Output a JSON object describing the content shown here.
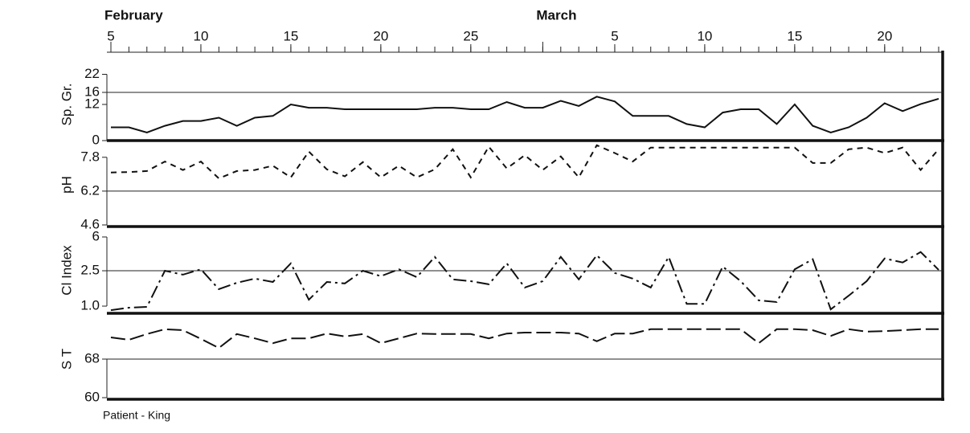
{
  "chart_data": {
    "type": "line",
    "months": [
      {
        "label": "February",
        "value": 5
      },
      {
        "label": "March",
        "value": 29
      }
    ],
    "x": [
      5,
      6,
      7,
      8,
      9,
      10,
      11,
      12,
      13,
      14,
      15,
      16,
      17,
      18,
      19,
      20,
      21,
      22,
      23,
      24,
      25,
      26,
      27,
      28,
      29,
      30,
      31,
      32,
      33,
      34,
      35,
      36,
      37,
      38,
      39,
      40,
      41,
      42,
      43,
      44,
      45,
      46,
      47,
      48,
      49,
      50,
      51
    ],
    "xlim": [
      5,
      51
    ],
    "xticks": [
      5,
      10,
      15,
      20,
      25,
      {
        "value": 33,
        "label": "5"
      },
      {
        "value": 38,
        "label": "10"
      },
      {
        "value": 43,
        "label": "15"
      },
      {
        "value": 48,
        "label": "20"
      }
    ],
    "color": "#111111",
    "panels": [
      {
        "ylabel": "Sp. Gr.",
        "ylim": [
          0,
          24
        ],
        "yticks": [
          0,
          12,
          16,
          22
        ],
        "log": false,
        "line_style": "solid",
        "reference_line": 16,
        "values": [
          4.4,
          4.4,
          2.7,
          4.9,
          6.5,
          6.5,
          7.6,
          4.9,
          7.6,
          8.2,
          12,
          10.9,
          10.9,
          10.4,
          10.4,
          10.4,
          10.4,
          10.4,
          10.9,
          10.9,
          10.4,
          10.4,
          12.8,
          10.9,
          10.9,
          13.2,
          11.5,
          14.6,
          13.0,
          8.2,
          8.2,
          8.2,
          5.5,
          4.4,
          9.3,
          10.4,
          10.4,
          5.5,
          12,
          4.9,
          2.7,
          4.4,
          7.6,
          12.4,
          9.8,
          12.1,
          13.9
        ]
      },
      {
        "ylabel": "pH",
        "ylim": [
          4.6,
          8.4
        ],
        "yticks": [
          7.8,
          6.2,
          4.6
        ],
        "log": false,
        "line_style": "dashed",
        "reference_line": 6.2,
        "values": [
          7.08,
          7.1,
          7.15,
          7.6,
          7.2,
          7.6,
          6.8,
          7.15,
          7.2,
          7.4,
          6.85,
          8.07,
          7.23,
          6.9,
          7.57,
          6.85,
          7.4,
          6.85,
          7.23,
          8.18,
          6.85,
          8.3,
          7.27,
          7.9,
          7.2,
          7.84,
          6.85,
          8.37,
          8.0,
          7.6,
          8.26,
          8.26,
          8.26,
          8.26,
          8.26,
          8.26,
          8.26,
          8.26,
          8.26,
          7.53,
          7.53,
          8.18,
          8.26,
          8.0,
          8.26,
          7.2,
          8.18
        ]
      },
      {
        "ylabel": "Cl Index",
        "ylim": [
          0.83,
          7.7
        ],
        "yticks": [
          6,
          2.5,
          {
            "value": 1,
            "label": "1.0"
          }
        ],
        "log": true,
        "line_style": "dashdot",
        "reference_line": 2.5,
        "values": [
          0.9,
          0.96,
          0.98,
          2.5,
          2.26,
          2.6,
          1.55,
          1.83,
          2.04,
          1.87,
          3.03,
          1.18,
          1.87,
          1.8,
          2.5,
          2.17,
          2.6,
          2.12,
          3.58,
          2.0,
          1.91,
          1.76,
          3.03,
          1.62,
          1.91,
          3.58,
          2.0,
          3.74,
          2.36,
          2.04,
          1.62,
          3.58,
          1.06,
          1.06,
          2.79,
          1.91,
          1.16,
          1.11,
          2.6,
          3.37,
          0.92,
          1.31,
          1.91,
          3.44,
          3.1,
          4.06,
          2.56
        ]
      },
      {
        "ylabel": "S T",
        "ylim": [
          60,
          76
        ],
        "yticks": [
          68,
          60
        ],
        "log": false,
        "line_style": "longdash",
        "reference_line": 68,
        "values": [
          72.5,
          72,
          73.2,
          74.2,
          74,
          72.2,
          70.3,
          73.2,
          72.3,
          71.3,
          72.3,
          72.3,
          73.3,
          72.7,
          73.2,
          71.3,
          72.3,
          73.3,
          73.2,
          73.2,
          73.2,
          72.3,
          73.3,
          73.5,
          73.5,
          73.5,
          73.3,
          71.7,
          73.3,
          73.3,
          74.2,
          74.2,
          74.2,
          74.2,
          74.2,
          74.2,
          71.3,
          74.2,
          74.2,
          74,
          72.8,
          74.2,
          73.7,
          73.8,
          74,
          74.2,
          74.2
        ]
      }
    ],
    "footnote": "Patient - King"
  }
}
